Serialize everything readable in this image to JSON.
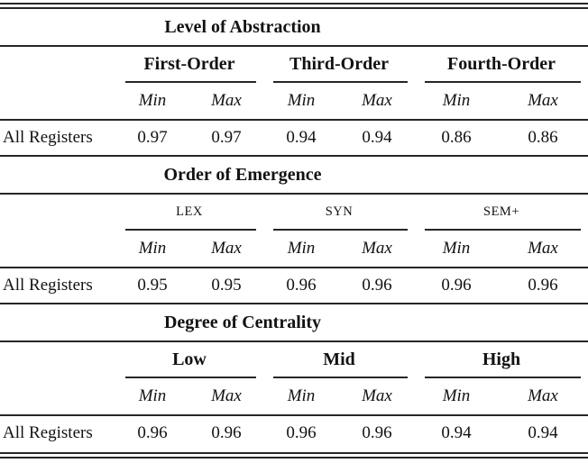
{
  "table": {
    "row_label": "All Registers",
    "col_subheaders": [
      "Min",
      "Max"
    ],
    "rule_color": "#262626",
    "sections": [
      {
        "title": "Level of Abstraction",
        "group_style": "bold",
        "groups": [
          {
            "label": "First-Order",
            "min": "0.97",
            "max": "0.97"
          },
          {
            "label": "Third-Order",
            "min": "0.94",
            "max": "0.94"
          },
          {
            "label": "Fourth-Order",
            "min": "0.86",
            "max": "0.86"
          }
        ]
      },
      {
        "title": "Order of Emergence",
        "group_style": "plain",
        "groups": [
          {
            "label": "LEX",
            "min": "0.95",
            "max": "0.95"
          },
          {
            "label": "SYN",
            "min": "0.96",
            "max": "0.96"
          },
          {
            "label": "SEM+",
            "min": "0.96",
            "max": "0.96"
          }
        ]
      },
      {
        "title": "Degree of Centrality",
        "group_style": "bold",
        "groups": [
          {
            "label": "Low",
            "min": "0.96",
            "max": "0.96"
          },
          {
            "label": "Mid",
            "min": "0.96",
            "max": "0.96"
          },
          {
            "label": "High",
            "min": "0.94",
            "max": "0.94"
          }
        ]
      }
    ]
  }
}
